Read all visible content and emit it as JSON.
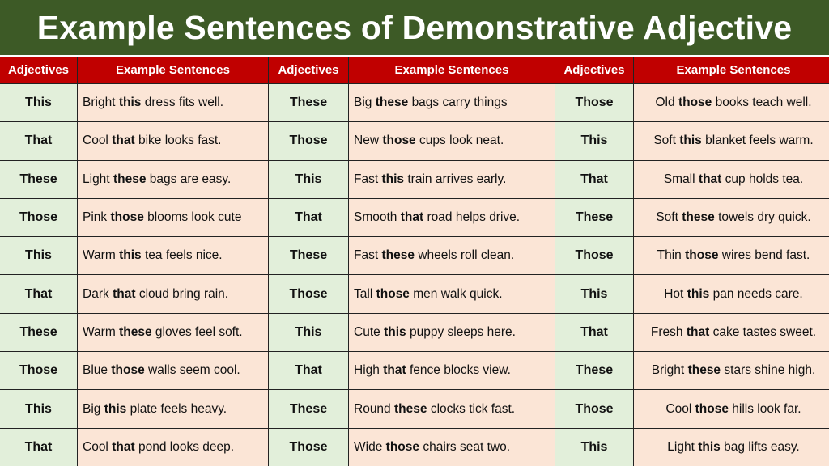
{
  "header": {
    "title": "Example Sentences of Demonstrative Adjective"
  },
  "table": {
    "columns": [
      "Adjectives",
      "Example Sentences",
      "Adjectives",
      "Example Sentences",
      "Adjectives",
      "Example Sentences"
    ],
    "rows": [
      [
        "This",
        {
          "pre": "Bright",
          "bold": "this",
          "post": "dress fits well."
        },
        "These",
        {
          "pre": "Big",
          "bold": "these",
          "post": "bags carry things"
        },
        "Those",
        {
          "pre": "Old",
          "bold": "those",
          "post": "books teach well."
        }
      ],
      [
        "That",
        {
          "pre": "Cool",
          "bold": "that",
          "post": "bike looks fast."
        },
        "Those",
        {
          "pre": "New",
          "bold": "those",
          "post": "cups look neat."
        },
        "This",
        {
          "pre": "Soft",
          "bold": "this",
          "post": "blanket feels warm."
        }
      ],
      [
        "These",
        {
          "pre": "Light",
          "bold": "these",
          "post": "bags are easy."
        },
        "This",
        {
          "pre": "Fast",
          "bold": "this",
          "post": "train arrives early."
        },
        "That",
        {
          "pre": "Small",
          "bold": "that",
          "post": "cup holds tea."
        }
      ],
      [
        "Those",
        {
          "pre": "Pink",
          "bold": "those",
          "post": "blooms look cute"
        },
        "That",
        {
          "pre": "Smooth",
          "bold": "that",
          "post": "road helps drive."
        },
        "These",
        {
          "pre": "Soft",
          "bold": "these",
          "post": "towels dry quick."
        }
      ],
      [
        "This",
        {
          "pre": "Warm",
          "bold": "this",
          "post": "tea feels nice."
        },
        "These",
        {
          "pre": "Fast",
          "bold": "these",
          "post": "wheels roll clean."
        },
        "Those",
        {
          "pre": "Thin",
          "bold": "those",
          "post": "wires bend fast."
        }
      ],
      [
        "That",
        {
          "pre": "Dark",
          "bold": "that",
          "post": "cloud bring rain."
        },
        "Those",
        {
          "pre": "Tall",
          "bold": "those",
          "post": "men walk quick."
        },
        "This",
        {
          "pre": "Hot",
          "bold": "this",
          "post": "pan needs care."
        }
      ],
      [
        "These",
        {
          "pre": "Warm",
          "bold": "these",
          "post": "gloves feel soft."
        },
        "This",
        {
          "pre": "Cute",
          "bold": "this",
          "post": "puppy sleeps here."
        },
        "That",
        {
          "pre": "Fresh",
          "bold": "that",
          "post": "cake tastes sweet."
        }
      ],
      [
        "Those",
        {
          "pre": "Blue",
          "bold": "those",
          "post": "walls seem cool."
        },
        "That",
        {
          "pre": "High",
          "bold": "that",
          "post": "fence blocks view."
        },
        "These",
        {
          "pre": "Bright",
          "bold": "these",
          "post": "stars shine high."
        }
      ],
      [
        "This",
        {
          "pre": "Big",
          "bold": "this",
          "post": "plate feels heavy."
        },
        "These",
        {
          "pre": "Round",
          "bold": "these",
          "post": "clocks tick fast."
        },
        "Those",
        {
          "pre": "Cool",
          "bold": "those",
          "post": "hills look far."
        }
      ],
      [
        "That",
        {
          "pre": "Cool",
          "bold": "that",
          "post": "pond looks deep."
        },
        "Those",
        {
          "pre": "Wide",
          "bold": "those",
          "post": "chairs seat two."
        },
        "This",
        {
          "pre": "Light",
          "bold": "this",
          "post": "bag lifts easy."
        }
      ]
    ]
  }
}
